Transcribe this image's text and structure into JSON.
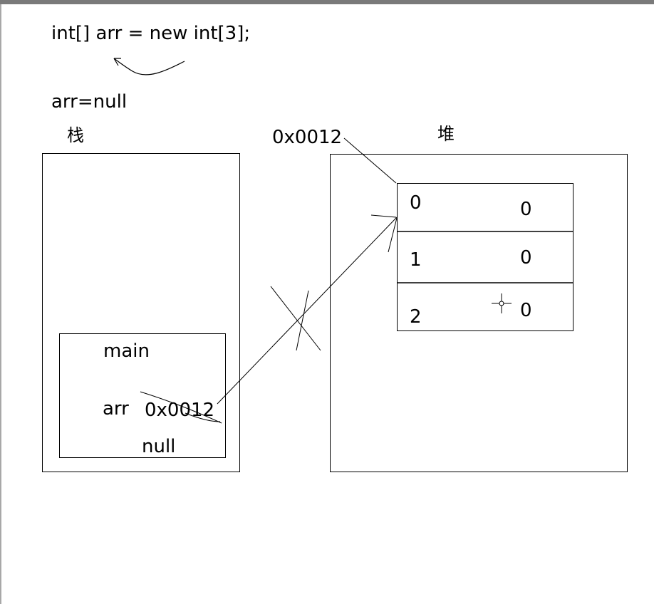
{
  "code": {
    "line1": "int[] arr = new int[3];",
    "line2": "arr=null"
  },
  "stack": {
    "title": "栈",
    "frame": {
      "name": "main",
      "var_name": "arr",
      "old_value": "0x0012",
      "new_value": "null"
    }
  },
  "heap": {
    "title": "堆",
    "address": "0x0012",
    "array": [
      {
        "index": "0",
        "value": "0"
      },
      {
        "index": "1",
        "value": "0"
      },
      {
        "index": "2",
        "value": "0"
      }
    ]
  }
}
